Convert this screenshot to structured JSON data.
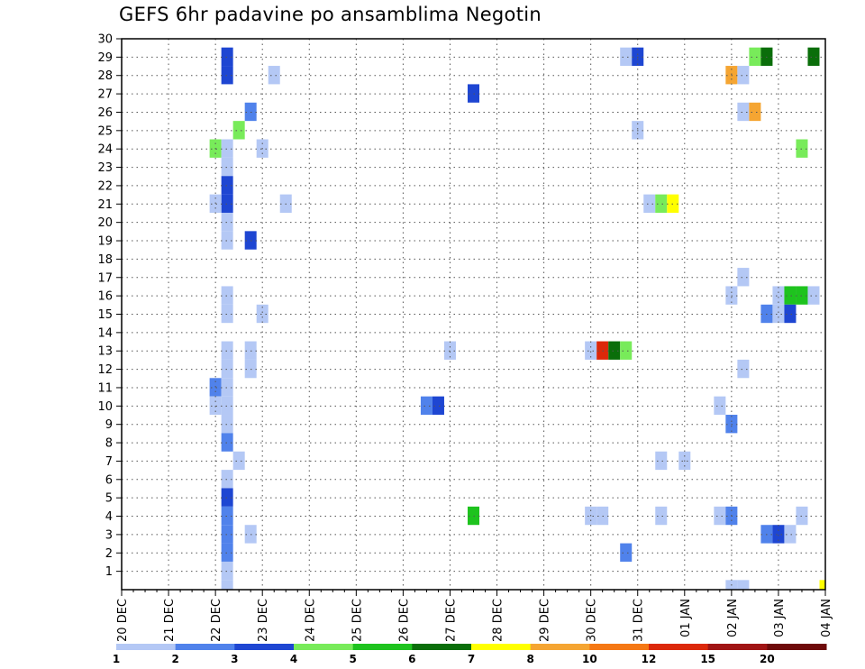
{
  "chart_data": {
    "type": "heatmap",
    "title": "GEFS 6hr padavine po ansamblima Negotin",
    "x_tick_labels": [
      "20 DEC",
      "21 DEC",
      "22 DEC",
      "23 DEC",
      "24 DEC",
      "25 DEC",
      "26 DEC",
      "27 DEC",
      "28 DEC",
      "29 DEC",
      "30 DEC",
      "31 DEC",
      "01 JAN",
      "02 JAN",
      "03 JAN",
      "04 JAN"
    ],
    "y_tick_labels": [
      "1",
      "2",
      "3",
      "4",
      "5",
      "6",
      "7",
      "8",
      "9",
      "10",
      "11",
      "12",
      "13",
      "14",
      "15",
      "16",
      "17",
      "18",
      "19",
      "20",
      "21",
      "22",
      "23",
      "24",
      "25",
      "26",
      "27",
      "28",
      "29",
      "30"
    ],
    "ylim": [
      0,
      30
    ],
    "x_unit": "6-hour step (0 = 20 DEC 00Z, 4 steps per day)",
    "xlim": [
      0,
      60
    ],
    "grid": true,
    "legend": {
      "position": "bottom",
      "labels": [
        "1",
        "2",
        "3",
        "4",
        "5",
        "6",
        "7",
        "8",
        "10",
        "12",
        "15",
        "20"
      ],
      "colors": [
        "#b4c8f5",
        "#5082eb",
        "#1e46d2",
        "#78eb5a",
        "#1ec31e",
        "#0a6e0a",
        "#ffff00",
        "#f5a532",
        "#f57814",
        "#dc280a",
        "#a01414",
        "#6e0a0a"
      ]
    },
    "cells": [
      {
        "x": 9,
        "y": 29,
        "c": 2
      },
      {
        "x": 9,
        "y": 28,
        "c": 2
      },
      {
        "x": 9,
        "y": 23,
        "c": 0
      },
      {
        "x": 9,
        "y": 22,
        "c": 2
      },
      {
        "x": 9,
        "y": 21,
        "c": 2
      },
      {
        "x": 9,
        "y": 20,
        "c": 0
      },
      {
        "x": 9,
        "y": 19,
        "c": 0
      },
      {
        "x": 8,
        "y": 24,
        "c": 3
      },
      {
        "x": 8,
        "y": 21,
        "c": 0
      },
      {
        "x": 9,
        "y": 24,
        "c": 0
      },
      {
        "x": 9,
        "y": 16,
        "c": 0
      },
      {
        "x": 9,
        "y": 15,
        "c": 0
      },
      {
        "x": 9,
        "y": 13,
        "c": 0
      },
      {
        "x": 9,
        "y": 12,
        "c": 0
      },
      {
        "x": 8,
        "y": 11,
        "c": 1
      },
      {
        "x": 8,
        "y": 10,
        "c": 0
      },
      {
        "x": 9,
        "y": 11,
        "c": 0
      },
      {
        "x": 9,
        "y": 10,
        "c": 0
      },
      {
        "x": 9,
        "y": 9,
        "c": 0
      },
      {
        "x": 9,
        "y": 8,
        "c": 1
      },
      {
        "x": 9,
        "y": 6,
        "c": 0
      },
      {
        "x": 9,
        "y": 5,
        "c": 2
      },
      {
        "x": 9,
        "y": 4,
        "c": 1
      },
      {
        "x": 9,
        "y": 3,
        "c": 1
      },
      {
        "x": 9,
        "y": 2,
        "c": 1
      },
      {
        "x": 9,
        "y": 1,
        "c": 0
      },
      {
        "x": 9,
        "y": 0,
        "c": 0
      },
      {
        "x": 10,
        "y": 25,
        "c": 3
      },
      {
        "x": 10,
        "y": 7,
        "c": 0
      },
      {
        "x": 11,
        "y": 26,
        "c": 1
      },
      {
        "x": 11,
        "y": 19,
        "c": 2
      },
      {
        "x": 11,
        "y": 13,
        "c": 0
      },
      {
        "x": 11,
        "y": 12,
        "c": 0
      },
      {
        "x": 11,
        "y": 3,
        "c": 0
      },
      {
        "x": 12,
        "y": 24,
        "c": 0
      },
      {
        "x": 12,
        "y": 15,
        "c": 0
      },
      {
        "x": 13,
        "y": 28,
        "c": 0
      },
      {
        "x": 14,
        "y": 21,
        "c": 0
      },
      {
        "x": 26,
        "y": 10,
        "c": 1
      },
      {
        "x": 27,
        "y": 10,
        "c": 2
      },
      {
        "x": 28,
        "y": 13,
        "c": 0
      },
      {
        "x": 30,
        "y": 27,
        "c": 2
      },
      {
        "x": 30,
        "y": 4,
        "c": 4
      },
      {
        "x": 40,
        "y": 13,
        "c": 0
      },
      {
        "x": 41,
        "y": 13,
        "c": 9
      },
      {
        "x": 42,
        "y": 13,
        "c": 5
      },
      {
        "x": 43,
        "y": 13,
        "c": 3
      },
      {
        "x": 40,
        "y": 4,
        "c": 0
      },
      {
        "x": 41,
        "y": 4,
        "c": 0
      },
      {
        "x": 43,
        "y": 29,
        "c": 0
      },
      {
        "x": 44,
        "y": 29,
        "c": 2
      },
      {
        "x": 43,
        "y": 2,
        "c": 1
      },
      {
        "x": 44,
        "y": 25,
        "c": 0
      },
      {
        "x": 45,
        "y": 21,
        "c": 0
      },
      {
        "x": 46,
        "y": 21,
        "c": 3
      },
      {
        "x": 47,
        "y": 21,
        "c": 6
      },
      {
        "x": 46,
        "y": 7,
        "c": 0
      },
      {
        "x": 46,
        "y": 4,
        "c": 0
      },
      {
        "x": 48,
        "y": 7,
        "c": 0
      },
      {
        "x": 51,
        "y": 10,
        "c": 0
      },
      {
        "x": 51,
        "y": 4,
        "c": 0
      },
      {
        "x": 52,
        "y": 28,
        "c": 7
      },
      {
        "x": 52,
        "y": 16,
        "c": 0
      },
      {
        "x": 52,
        "y": 9,
        "c": 1
      },
      {
        "x": 52,
        "y": 4,
        "c": 1
      },
      {
        "x": 52,
        "y": 0,
        "c": 0
      },
      {
        "x": 53,
        "y": 28,
        "c": 0
      },
      {
        "x": 53,
        "y": 26,
        "c": 0
      },
      {
        "x": 53,
        "y": 17,
        "c": 0
      },
      {
        "x": 53,
        "y": 12,
        "c": 0
      },
      {
        "x": 53,
        "y": 0,
        "c": 0
      },
      {
        "x": 54,
        "y": 29,
        "c": 3
      },
      {
        "x": 54,
        "y": 26,
        "c": 7
      },
      {
        "x": 55,
        "y": 29,
        "c": 5
      },
      {
        "x": 55,
        "y": 15,
        "c": 1
      },
      {
        "x": 55,
        "y": 3,
        "c": 1
      },
      {
        "x": 56,
        "y": 16,
        "c": 0
      },
      {
        "x": 56,
        "y": 15,
        "c": 0
      },
      {
        "x": 56,
        "y": 3,
        "c": 2
      },
      {
        "x": 57,
        "y": 16,
        "c": 4
      },
      {
        "x": 57,
        "y": 15,
        "c": 2
      },
      {
        "x": 57,
        "y": 3,
        "c": 0
      },
      {
        "x": 58,
        "y": 24,
        "c": 3
      },
      {
        "x": 58,
        "y": 16,
        "c": 4
      },
      {
        "x": 58,
        "y": 4,
        "c": 0
      },
      {
        "x": 59,
        "y": 29,
        "c": 5
      },
      {
        "x": 59,
        "y": 16,
        "c": 0
      },
      {
        "x": 60,
        "y": 0,
        "c": 6
      }
    ]
  }
}
